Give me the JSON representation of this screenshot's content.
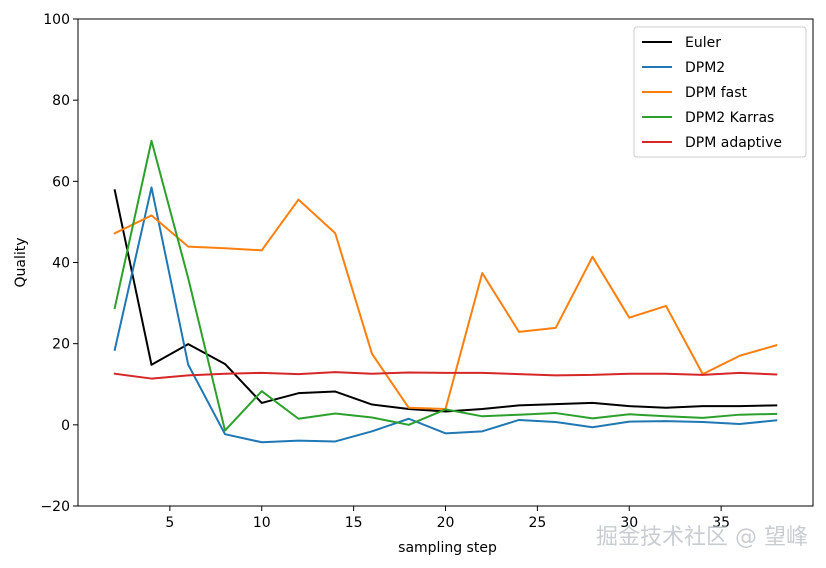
{
  "chart_data": {
    "type": "line",
    "title": "",
    "xlabel": "sampling step",
    "ylabel": "Quality",
    "xlim": [
      0,
      40
    ],
    "ylim": [
      -20,
      100
    ],
    "xticks": [
      5,
      10,
      15,
      20,
      25,
      30,
      35
    ],
    "yticks": [
      -20,
      0,
      20,
      40,
      60,
      80,
      100
    ],
    "grid": false,
    "legend_position": "top-right",
    "x": [
      2,
      4,
      6,
      8,
      10,
      12,
      14,
      16,
      18,
      20,
      22,
      24,
      26,
      28,
      30,
      32,
      34,
      36,
      38
    ],
    "series": [
      {
        "name": "Euler",
        "color": "#000000",
        "values": [
          57.8,
          14.8,
          19.9,
          15.0,
          5.4,
          7.8,
          8.2,
          5.0,
          3.9,
          3.3,
          3.9,
          4.8,
          5.1,
          5.4,
          4.6,
          4.2,
          4.6,
          4.6,
          4.8
        ]
      },
      {
        "name": "DPM2",
        "color": "#1f77b4",
        "values": [
          18.5,
          58.5,
          14.8,
          -2.3,
          -4.3,
          -3.9,
          -4.1,
          -1.6,
          1.5,
          -2.1,
          -1.6,
          1.2,
          0.7,
          -0.6,
          0.8,
          0.9,
          0.7,
          0.2,
          1.1
        ]
      },
      {
        "name": "DPM fast",
        "color": "#ff7f0e",
        "values": [
          47.2,
          51.6,
          43.9,
          43.5,
          43.0,
          55.5,
          47.2,
          17.5,
          4.2,
          3.9,
          37.4,
          22.9,
          23.9,
          41.4,
          26.4,
          29.3,
          12.5,
          17.0,
          19.6
        ]
      },
      {
        "name": "DPM2 Karras",
        "color": "#2ca02c",
        "values": [
          28.8,
          70.0,
          36.1,
          -1.4,
          8.3,
          1.5,
          2.8,
          1.8,
          0.0,
          3.8,
          2.1,
          2.5,
          2.9,
          1.6,
          2.6,
          2.1,
          1.7,
          2.5,
          2.7
        ]
      },
      {
        "name": "DPM adaptive",
        "color": "#d62728",
        "values": [
          12.6,
          11.4,
          12.2,
          12.6,
          12.8,
          12.5,
          13.0,
          12.6,
          12.9,
          12.8,
          12.8,
          12.5,
          12.2,
          12.3,
          12.6,
          12.6,
          12.3,
          12.8,
          12.4
        ]
      }
    ]
  },
  "watermark": "掘金技术社区 @ 望峰"
}
